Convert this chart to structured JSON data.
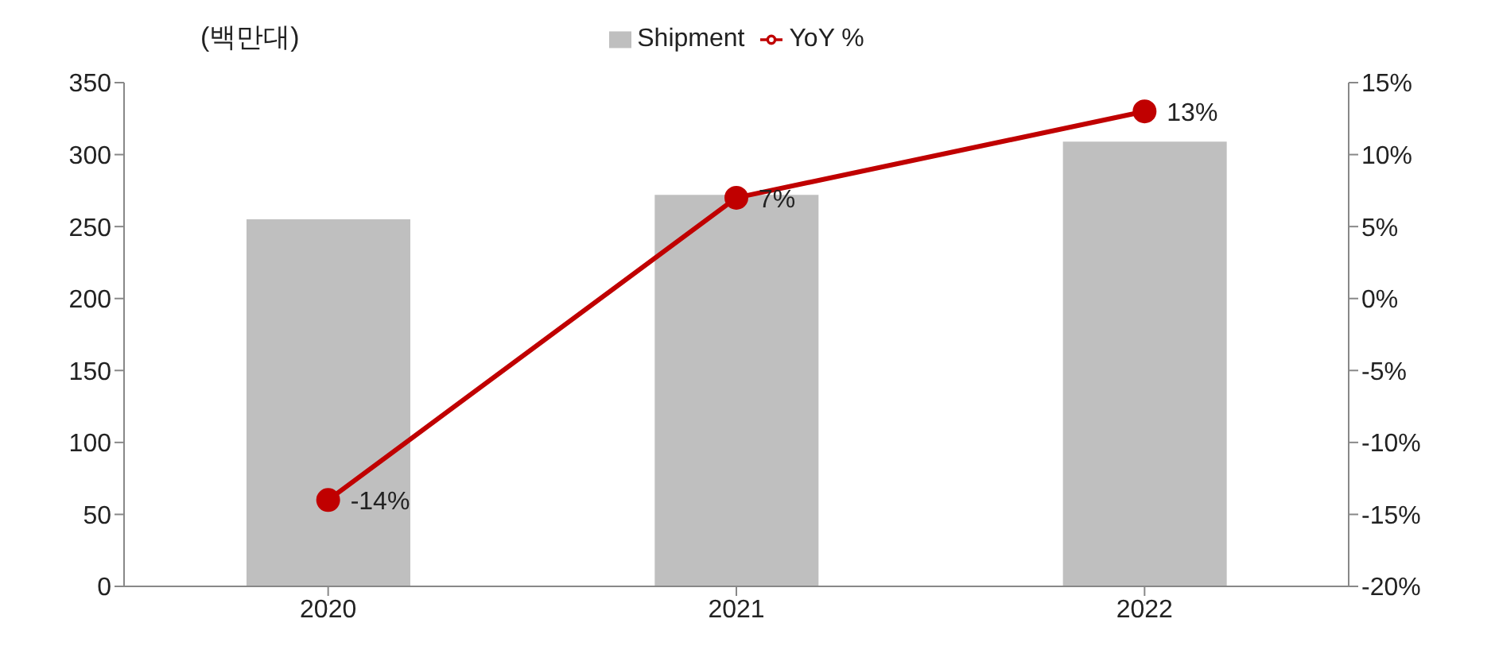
{
  "chart_data": {
    "type": "bar",
    "ylabel": "(백만대)",
    "categories": [
      "2020",
      "2021",
      "2022"
    ],
    "series": [
      {
        "name": "Shipment",
        "color": "#bfbfbf",
        "values": [
          255,
          272,
          309
        ]
      },
      {
        "name": "YoY %",
        "type": "line",
        "axis": "y2",
        "color": "#c00000",
        "values": [
          -14,
          7,
          13
        ],
        "value_labels": [
          "-14%",
          "7%",
          "13%"
        ]
      }
    ],
    "ylim": [
      0,
      350
    ],
    "yticks": [
      0,
      50,
      100,
      150,
      200,
      250,
      300,
      350
    ],
    "y2lim": [
      -20,
      15
    ],
    "y2ticks": [
      {
        "value": -20,
        "label": "-20%"
      },
      {
        "value": -15,
        "label": "-15%"
      },
      {
        "value": -10,
        "label": "-10%"
      },
      {
        "value": -5,
        "label": "-5%"
      },
      {
        "value": 0,
        "label": "0%"
      },
      {
        "value": 5,
        "label": "5%"
      },
      {
        "value": 10,
        "label": "10%"
      },
      {
        "value": 15,
        "label": "15%"
      }
    ],
    "grid": false,
    "legend": "top",
    "marker": "circle",
    "line_style": "solid"
  }
}
